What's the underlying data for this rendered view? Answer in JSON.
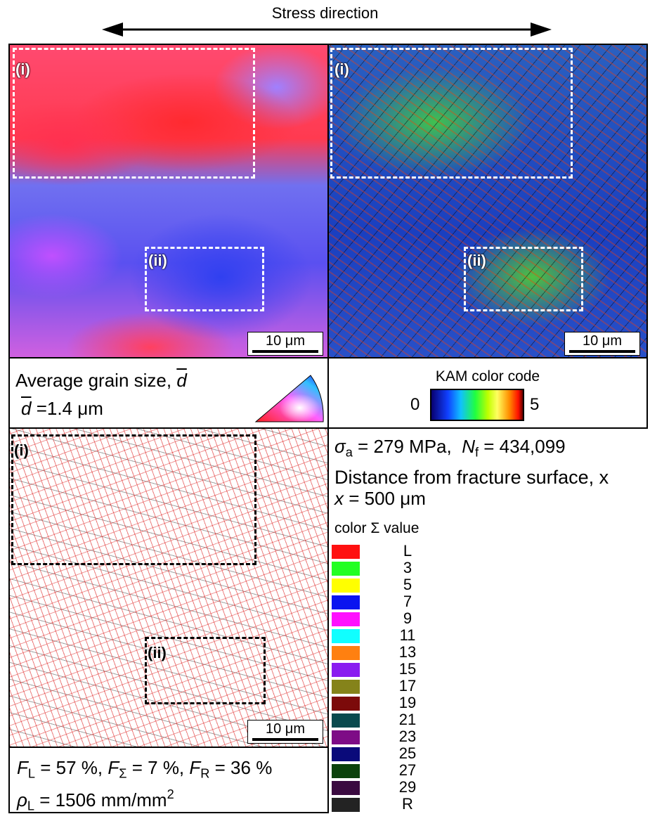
{
  "header": {
    "title": "Stress direction"
  },
  "ipf_map": {
    "region_labels": [
      "(i)",
      "(ii)"
    ],
    "scale_bar": "10 μm"
  },
  "kam_map": {
    "region_labels": [
      "(i)",
      "(ii)"
    ],
    "scale_bar": "10 μm"
  },
  "grain_size": {
    "line1": [
      "Average grain size, ",
      "d"
    ],
    "line2": [
      "d",
      " =1.4 μm"
    ]
  },
  "kam_code": {
    "title": "KAM color code",
    "min_label": "0",
    "max_label": "5"
  },
  "boundary_map": {
    "region_labels": [
      "(i)",
      "(ii)"
    ],
    "scale_bar": "10 μm"
  },
  "fractions": {
    "line1": [
      "F",
      "L",
      " = 57 %, ",
      "F",
      "Σ",
      " = 7 %, ",
      "F",
      "R",
      " = 36 %"
    ],
    "line2": [
      "ρ",
      "L",
      " = 1506 mm/mm",
      "2"
    ]
  },
  "conditions": {
    "line1": [
      "σ",
      "a",
      " = 279 MPa,  ",
      "N",
      "f",
      " = 434,099"
    ],
    "distance_title": "Distance from fracture surface, x",
    "distance_value": [
      "x",
      " = 500 μm"
    ]
  },
  "sigma_legend": {
    "title": [
      "color ",
      "Σ",
      " value"
    ],
    "entries": [
      {
        "label": "L",
        "color": "#ff1010"
      },
      {
        "label": "3",
        "color": "#22ff22"
      },
      {
        "label": "5",
        "color": "#ffff00"
      },
      {
        "label": "7",
        "color": "#0a14f0"
      },
      {
        "label": "9",
        "color": "#ff10ff"
      },
      {
        "label": "11",
        "color": "#10ffff"
      },
      {
        "label": "13",
        "color": "#ff8010"
      },
      {
        "label": "15",
        "color": "#8a1cf0"
      },
      {
        "label": "17",
        "color": "#85831a"
      },
      {
        "label": "19",
        "color": "#7c0a0a"
      },
      {
        "label": "21",
        "color": "#0a4a4e"
      },
      {
        "label": "23",
        "color": "#7e0c86"
      },
      {
        "label": "25",
        "color": "#0a0a7a"
      },
      {
        "label": "27",
        "color": "#0c420c"
      },
      {
        "label": "29",
        "color": "#3a0a40"
      },
      {
        "label": "R",
        "color": "#232323"
      }
    ]
  }
}
